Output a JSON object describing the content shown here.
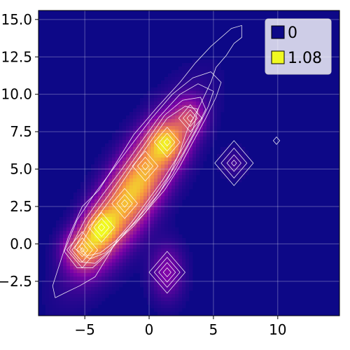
{
  "chart_data": {
    "type": "heatmap",
    "title": "",
    "xlabel": "",
    "ylabel": "",
    "xlim": [
      -8.6,
      14.8
    ],
    "ylim": [
      -4.8,
      15.6
    ],
    "x_ticks": [
      -5,
      0,
      5,
      10
    ],
    "x_tick_labels": [
      "−5",
      "0",
      "5",
      "10"
    ],
    "y_ticks": [
      -2.5,
      0.0,
      2.5,
      5.0,
      7.5,
      10.0,
      12.5,
      15.0
    ],
    "y_tick_labels": [
      "−2.5",
      "0.0",
      "2.5",
      "5.0",
      "7.5",
      "10.0",
      "12.5",
      "15.0"
    ],
    "grid": true,
    "colormap": "plasma",
    "background_color": "#0d0887",
    "value_range": [
      0,
      1.08
    ],
    "legend": {
      "placement": "top-right",
      "entries": [
        {
          "label": "0",
          "color": "#0d0887"
        },
        {
          "label": "1.08",
          "color": "#f0f921"
        }
      ]
    },
    "density_components": [
      {
        "cx": -1.2,
        "cy": 3.6,
        "sx": 1.3,
        "sy": 3.9,
        "theta_deg": 53,
        "amp": 0.95
      },
      {
        "cx": -5.2,
        "cy": -0.4,
        "sx": 0.9,
        "sy": 1.0,
        "theta_deg": 0,
        "amp": 0.55
      },
      {
        "cx": -3.8,
        "cy": 1.1,
        "sx": 0.9,
        "sy": 0.9,
        "theta_deg": 0,
        "amp": 0.5
      },
      {
        "cx": 1.4,
        "cy": 6.8,
        "sx": 0.9,
        "sy": 1.0,
        "theta_deg": 0,
        "amp": 0.5
      },
      {
        "cx": 3.2,
        "cy": 8.4,
        "sx": 0.8,
        "sy": 0.8,
        "theta_deg": 0,
        "amp": 0.35
      },
      {
        "cx": 1.4,
        "cy": -1.9,
        "sx": 1.3,
        "sy": 0.9,
        "theta_deg": 0,
        "amp": 0.28
      },
      {
        "cx": 6.6,
        "cy": 5.4,
        "sx": 0.7,
        "sy": 0.7,
        "theta_deg": 0,
        "amp": 0.12
      }
    ],
    "contour_groups": [
      {
        "kind": "diamond",
        "cx": 6.6,
        "cy": 5.4,
        "radii": [
          1.5,
          1.0,
          0.55,
          0.2
        ]
      },
      {
        "kind": "diamond",
        "cx": 1.4,
        "cy": -1.9,
        "radii": [
          1.4,
          1.0,
          0.65,
          0.3
        ]
      },
      {
        "kind": "diamond",
        "cx": 9.9,
        "cy": 6.9,
        "radii": [
          0.25
        ]
      },
      {
        "kind": "diamond",
        "cx": 3.2,
        "cy": 8.4,
        "radii": [
          0.9,
          0.55,
          0.25
        ]
      },
      {
        "kind": "diamond",
        "cx": -5.2,
        "cy": -0.4,
        "radii": [
          1.2,
          0.8,
          0.45,
          0.15
        ]
      },
      {
        "kind": "diamond",
        "cx": -3.7,
        "cy": 1.1,
        "radii": [
          1.0,
          0.6,
          0.25
        ]
      },
      {
        "kind": "diamond",
        "cx": -1.9,
        "cy": 2.7,
        "radii": [
          1.0,
          0.6,
          0.25
        ]
      },
      {
        "kind": "diamond",
        "cx": -0.3,
        "cy": 5.2,
        "radii": [
          1.0,
          0.6,
          0.25
        ]
      },
      {
        "kind": "diamond",
        "cx": 1.4,
        "cy": 6.8,
        "radii": [
          1.0,
          0.6,
          0.25
        ]
      }
    ],
    "contour_polylines": [
      [
        [
          -7.3,
          -3.6
        ],
        [
          -7.5,
          -2.8
        ],
        [
          -6.9,
          -1.2
        ],
        [
          -6.3,
          0.4
        ],
        [
          -5.2,
          2.5
        ],
        [
          -3.9,
          3.6
        ],
        [
          -2.5,
          5.5
        ],
        [
          -1.2,
          7.3
        ],
        [
          0.6,
          9.1
        ],
        [
          2.4,
          10.8
        ],
        [
          3.6,
          12.1
        ],
        [
          4.8,
          13.2
        ],
        [
          6.4,
          14.4
        ],
        [
          7.2,
          14.6
        ],
        [
          7.2,
          13.8
        ],
        [
          6.6,
          13.4
        ],
        [
          6.0,
          12.6
        ],
        [
          5.2,
          11.8
        ],
        [
          4.8,
          10.8
        ],
        [
          3.8,
          9.0
        ],
        [
          3.0,
          7.7
        ],
        [
          2.4,
          6.2
        ],
        [
          1.6,
          4.6
        ],
        [
          0.8,
          3.4
        ],
        [
          -0.4,
          2.0
        ],
        [
          -1.6,
          1.0
        ],
        [
          -2.4,
          0.4
        ],
        [
          -3.2,
          -0.8
        ],
        [
          -4.2,
          -2.2
        ],
        [
          -5.4,
          -2.8
        ],
        [
          -6.6,
          -3.3
        ],
        [
          -7.3,
          -3.6
        ]
      ],
      [
        [
          -6.6,
          -0.5
        ],
        [
          -5.6,
          1.6
        ],
        [
          -4.2,
          3.4
        ],
        [
          -2.8,
          5.0
        ],
        [
          -1.4,
          6.6
        ],
        [
          0.2,
          8.4
        ],
        [
          1.8,
          10.0
        ],
        [
          3.4,
          11.1
        ],
        [
          4.8,
          11.5
        ],
        [
          5.6,
          10.8
        ],
        [
          5.2,
          9.8
        ],
        [
          4.4,
          8.4
        ],
        [
          3.4,
          6.8
        ],
        [
          2.4,
          5.2
        ],
        [
          1.2,
          3.6
        ],
        [
          0.0,
          2.4
        ],
        [
          -1.2,
          1.2
        ],
        [
          -2.2,
          0.4
        ],
        [
          -3.4,
          -0.8
        ],
        [
          -4.4,
          -1.6
        ],
        [
          -5.6,
          -1.6
        ],
        [
          -6.6,
          -0.5
        ]
      ],
      [
        [
          -6.2,
          -0.4
        ],
        [
          -5.0,
          1.6
        ],
        [
          -3.6,
          3.3
        ],
        [
          -2.2,
          4.9
        ],
        [
          -0.8,
          6.6
        ],
        [
          0.8,
          8.5
        ],
        [
          2.4,
          10.0
        ],
        [
          3.8,
          10.7
        ],
        [
          5.0,
          10.2
        ],
        [
          4.6,
          9.2
        ],
        [
          3.8,
          7.8
        ],
        [
          2.8,
          6.2
        ],
        [
          1.8,
          4.6
        ],
        [
          0.6,
          3.2
        ],
        [
          -0.6,
          2.0
        ],
        [
          -1.8,
          0.8
        ],
        [
          -3.0,
          -0.4
        ],
        [
          -4.2,
          -1.3
        ],
        [
          -5.4,
          -1.2
        ],
        [
          -6.2,
          -0.4
        ]
      ],
      [
        [
          -5.8,
          -0.3
        ],
        [
          -4.6,
          1.6
        ],
        [
          -3.2,
          3.2
        ],
        [
          -1.8,
          4.9
        ],
        [
          -0.4,
          6.6
        ],
        [
          1.2,
          8.6
        ],
        [
          2.6,
          9.6
        ],
        [
          4.0,
          9.8
        ],
        [
          4.4,
          9.0
        ],
        [
          3.6,
          7.6
        ],
        [
          2.6,
          6.0
        ],
        [
          1.4,
          4.4
        ],
        [
          0.2,
          3.0
        ],
        [
          -1.0,
          1.6
        ],
        [
          -2.2,
          0.4
        ],
        [
          -3.4,
          -0.6
        ],
        [
          -4.6,
          -1.0
        ],
        [
          -5.8,
          -0.3
        ]
      ],
      [
        [
          -5.4,
          -0.2
        ],
        [
          -4.2,
          1.6
        ],
        [
          -2.8,
          3.2
        ],
        [
          -1.4,
          5.0
        ],
        [
          0.0,
          6.7
        ],
        [
          1.4,
          8.4
        ],
        [
          2.8,
          9.2
        ],
        [
          3.8,
          9.0
        ],
        [
          3.4,
          7.6
        ],
        [
          2.2,
          5.8
        ],
        [
          1.0,
          4.2
        ],
        [
          -0.2,
          2.8
        ],
        [
          -1.4,
          1.4
        ],
        [
          -2.6,
          0.2
        ],
        [
          -3.8,
          -0.6
        ],
        [
          -4.8,
          -0.8
        ],
        [
          -5.4,
          -0.2
        ]
      ]
    ]
  }
}
